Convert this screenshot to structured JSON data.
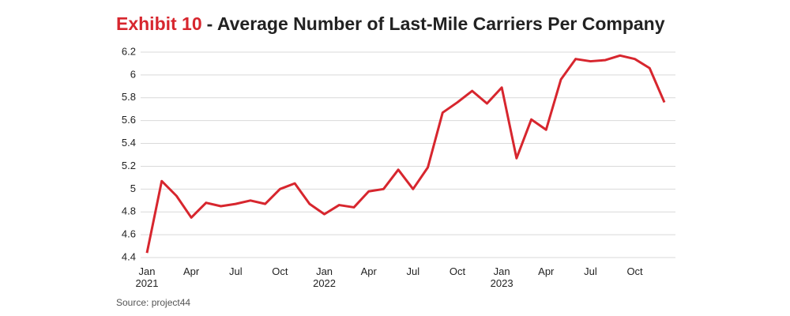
{
  "chart_data": {
    "type": "line",
    "title_prefix": "Exhibit 10",
    "title": "- Average Number of Last-Mile Carriers Per Company",
    "source": "Source: project44",
    "categories": [
      "Jan 2021",
      null,
      null,
      "Apr",
      null,
      null,
      "Jul",
      null,
      null,
      "Oct",
      null,
      null,
      "Jan 2022",
      null,
      null,
      "Apr",
      null,
      null,
      "Jul",
      null,
      null,
      "Oct",
      null,
      null,
      "Jan 2023",
      null,
      null,
      "Apr",
      null,
      null,
      "Jul",
      null,
      null,
      "Oct",
      null,
      null
    ],
    "series": [
      {
        "name": "Average carriers",
        "color": "#d7262e",
        "values": [
          4.44,
          5.07,
          4.94,
          4.75,
          4.88,
          4.85,
          4.87,
          4.9,
          4.87,
          5.0,
          5.05,
          4.87,
          4.78,
          4.86,
          4.84,
          4.98,
          5.0,
          5.17,
          5.0,
          5.19,
          5.67,
          5.76,
          5.86,
          5.75,
          5.89,
          5.27,
          5.61,
          5.52,
          5.96,
          6.14,
          6.12,
          6.13,
          6.17,
          6.14,
          6.06,
          5.76
        ]
      }
    ],
    "ylim": [
      4.4,
      6.2
    ],
    "yticks": [
      4.4,
      4.6,
      4.8,
      5,
      5.2,
      5.4,
      5.6,
      5.8,
      6,
      6.2
    ],
    "grid": true
  }
}
